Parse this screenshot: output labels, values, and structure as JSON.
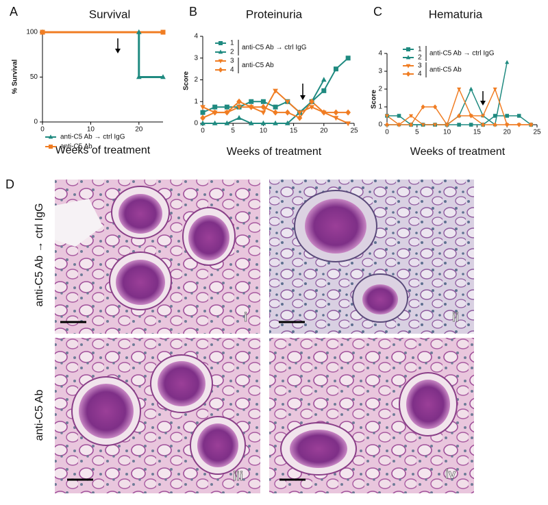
{
  "chart_data": [
    {
      "type": "line",
      "title": "Survival",
      "x_label": "Weeks of treatment",
      "y_label": "% Survival",
      "xlim": [
        0,
        25
      ],
      "xticks": [
        0,
        10,
        20
      ],
      "ylim": [
        0,
        100
      ],
      "yticks": [
        0,
        50,
        100
      ],
      "series": [
        {
          "name": "anti-C5 Ab → ctrl IgG",
          "color": "#1f8a80",
          "marker": "triangle",
          "x": [
            0,
            20,
            20,
            25
          ],
          "values": [
            100,
            100,
            50,
            50
          ]
        },
        {
          "name": "anti-C5 Ab",
          "color": "#f07d23",
          "marker": "square",
          "x": [
            0,
            25
          ],
          "values": [
            100,
            100
          ]
        }
      ]
    },
    {
      "type": "line",
      "title": "Proteinuria",
      "x_label": "Weeks of treatment",
      "y_label": "Score",
      "xlim": [
        0,
        25
      ],
      "xticks": [
        0,
        5,
        10,
        15,
        20,
        25
      ],
      "ylim": [
        0,
        4
      ],
      "yticks": [
        0,
        1,
        2,
        3,
        4
      ],
      "legend_groups": [
        "anti-C5 Ab → ctrl IgG",
        "anti-C5 Ab"
      ],
      "x": [
        0,
        2,
        4,
        6,
        8,
        10,
        12,
        14,
        16,
        18,
        20,
        22,
        24
      ],
      "series": [
        {
          "name": "1",
          "color": "#1f8a80",
          "marker": "square",
          "values": [
            0.5,
            0.75,
            0.75,
            0.75,
            1,
            1,
            0.75,
            1,
            0.5,
            1,
            1.5,
            2.5,
            3
          ]
        },
        {
          "name": "2",
          "color": "#1f8a80",
          "marker": "triangle",
          "values": [
            0,
            0,
            0,
            0.25,
            0,
            0,
            0,
            0,
            0.5,
            1,
            2,
            null,
            null
          ]
        },
        {
          "name": "3",
          "color": "#f07d23",
          "marker": "triangle-down",
          "values": [
            0.75,
            0.5,
            0.5,
            0.75,
            0.75,
            0.5,
            1.5,
            1,
            0.5,
            0.75,
            0.5,
            0.25,
            0
          ]
        },
        {
          "name": "4",
          "color": "#f07d23",
          "marker": "diamond",
          "values": [
            0.25,
            0.5,
            0.5,
            1,
            0.75,
            0.75,
            0.5,
            0.5,
            0.25,
            1,
            0.5,
            0.5,
            0.5
          ]
        }
      ]
    },
    {
      "type": "line",
      "title": "Hematuria",
      "x_label": "Weeks of treatment",
      "y_label": "Score",
      "xlim": [
        0,
        25
      ],
      "xticks": [
        0,
        5,
        10,
        15,
        20,
        25
      ],
      "ylim": [
        0,
        4
      ],
      "yticks": [
        0,
        1,
        2,
        3,
        4
      ],
      "legend_groups": [
        "anti-C5 Ab → ctrl IgG",
        "anti-C5 Ab"
      ],
      "x": [
        0,
        2,
        4,
        6,
        8,
        10,
        12,
        14,
        16,
        18,
        20,
        22,
        24
      ],
      "series": [
        {
          "name": "1",
          "color": "#1f8a80",
          "marker": "square",
          "values": [
            0.5,
            0.5,
            0,
            0,
            0,
            0,
            0,
            0,
            0,
            0.5,
            0.5,
            0.5,
            0
          ]
        },
        {
          "name": "2",
          "color": "#1f8a80",
          "marker": "triangle",
          "values": [
            0,
            0,
            0,
            0,
            0,
            0,
            0.5,
            2,
            0.5,
            0,
            3.5,
            null,
            null
          ]
        },
        {
          "name": "3",
          "color": "#f07d23",
          "marker": "triangle-down",
          "values": [
            0.5,
            0,
            0.5,
            0,
            0,
            0,
            2,
            0.5,
            0.5,
            2,
            0,
            0,
            0
          ]
        },
        {
          "name": "4",
          "color": "#f07d23",
          "marker": "diamond",
          "values": [
            0,
            0,
            0,
            1,
            1,
            0,
            0.5,
            0.5,
            0,
            0,
            0,
            0,
            0
          ]
        }
      ]
    }
  ],
  "figure": {
    "panel_labels": [
      "A",
      "B",
      "C",
      "D"
    ],
    "row_labels": [
      "anti-C5 Ab → ctrl IgG",
      "anti-C5 Ab"
    ],
    "image_labels": [
      "i",
      "ii",
      "iii",
      "iv"
    ]
  }
}
